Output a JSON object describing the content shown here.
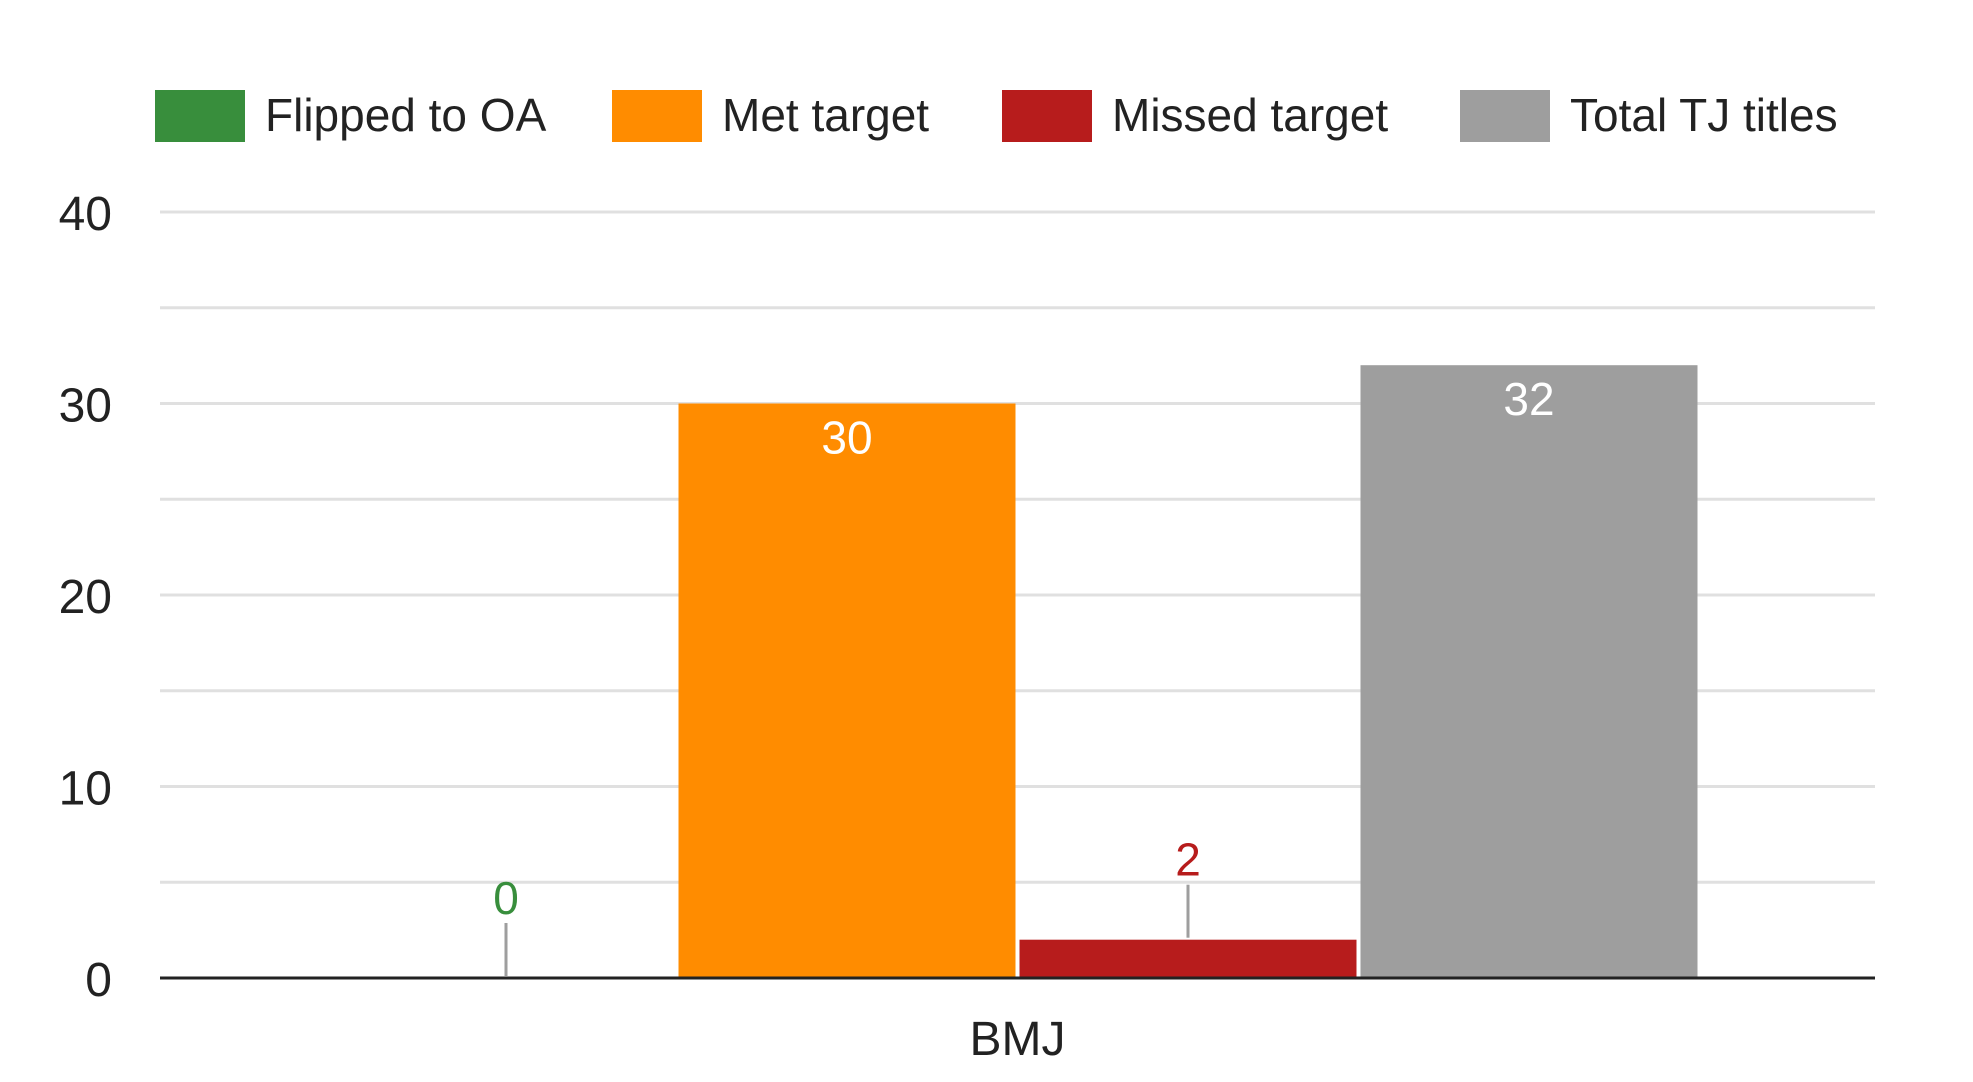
{
  "chart_data": {
    "type": "bar",
    "categories": [
      "BMJ"
    ],
    "series": [
      {
        "name": "Flipped to OA",
        "values": [
          0
        ],
        "color": "#388e3c",
        "label_color": "#388e3c"
      },
      {
        "name": "Met target",
        "values": [
          30
        ],
        "color": "#ff8c00",
        "label_color": "#ffffff"
      },
      {
        "name": "Missed target",
        "values": [
          2
        ],
        "color": "#b71c1c",
        "label_color": "#b71c1c"
      },
      {
        "name": "Total TJ titles",
        "values": [
          32
        ],
        "color": "#9e9e9e",
        "label_color": "#ffffff"
      }
    ],
    "data_labels": [
      "0",
      "30",
      "2",
      "32"
    ],
    "ylim": [
      0,
      40
    ],
    "yticks": [
      "0",
      "10",
      "20",
      "30",
      "40"
    ],
    "minor_gridlines": true,
    "legend_position": "top",
    "grid": true,
    "xlabel": "",
    "ylabel": "",
    "title": ""
  }
}
